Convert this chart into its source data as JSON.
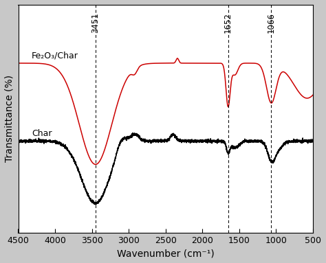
{
  "xmin": 500,
  "xmax": 4500,
  "xlabel": "Wavenumber (cm⁻¹)",
  "ylabel": "Transmittance (%)",
  "background_color": "#c8c8c8",
  "plot_bg_color": "#ffffff",
  "peaks": [
    3451,
    1652,
    1066
  ],
  "peak_labels": [
    "3451",
    "1652",
    "1066"
  ],
  "red_label": "Fe₂O₃/Char",
  "black_label": "Char",
  "red_color": "#cc0000",
  "black_color": "#000000",
  "xticks": [
    4500,
    4000,
    3500,
    3000,
    2500,
    2000,
    1500,
    1000,
    500
  ],
  "red_baseline": 0.82,
  "black_baseline": 0.42
}
